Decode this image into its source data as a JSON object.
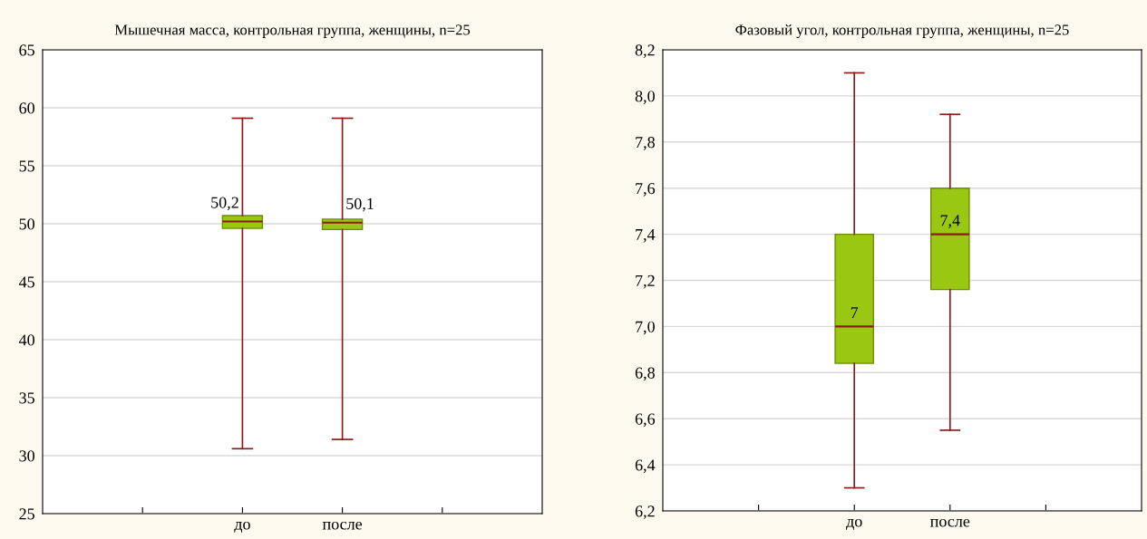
{
  "chart_data": [
    {
      "type": "box",
      "title": "Мышечная масса, контрольная группа, женщины, n=25",
      "categories": [
        "до",
        "после"
      ],
      "boxes": [
        {
          "low": 30.6,
          "q1": 49.6,
          "median": 50.2,
          "q3": 50.7,
          "high": 59.1
        },
        {
          "low": 31.4,
          "q1": 49.5,
          "median": 50.1,
          "q3": 50.4,
          "high": 59.1
        }
      ],
      "color": "#99c712",
      "ylim": [
        25,
        65
      ],
      "yticks": [
        25,
        30,
        35,
        40,
        45,
        50,
        55,
        60,
        65
      ],
      "grid": "y",
      "legend": false,
      "annotations": [
        "50,2",
        "50,1"
      ]
    },
    {
      "type": "box",
      "title": "Фазовый угол, контрольная группа, женщины, n=25",
      "categories": [
        "до",
        "после"
      ],
      "boxes": [
        {
          "low": 6.3,
          "q1": 6.84,
          "median": 7.0,
          "q3": 7.4,
          "high": 8.1
        },
        {
          "low": 6.55,
          "q1": 7.16,
          "median": 7.4,
          "q3": 7.6,
          "high": 7.92
        }
      ],
      "color": "#99c712",
      "ylim": [
        6.2,
        8.2
      ],
      "yticks": [
        {
          "value": 6.2,
          "label": "6,2"
        },
        {
          "value": 6.4,
          "label": "6,4"
        },
        {
          "value": 6.6,
          "label": "6,6"
        },
        {
          "value": 6.8,
          "label": "6,8"
        },
        {
          "value": 7.0,
          "label": "7,0"
        },
        {
          "value": 7.2,
          "label": "7,2"
        },
        {
          "value": 7.4,
          "label": "7,4"
        },
        {
          "value": 7.6,
          "label": "7,6"
        },
        {
          "value": 7.8,
          "label": "7,8"
        },
        {
          "value": 8.0,
          "label": "8,0"
        },
        {
          "value": 8.2,
          "label": "8,2"
        }
      ],
      "grid": "y",
      "legend": false,
      "annotations": [
        "7",
        "7,4"
      ]
    }
  ]
}
